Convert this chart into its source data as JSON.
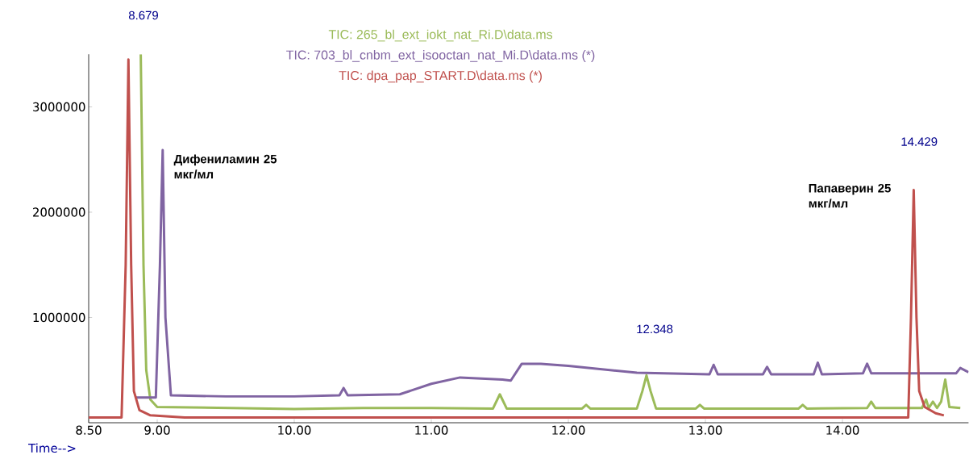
{
  "chart_data": {
    "type": "line",
    "xlabel": "Time-->",
    "xlim": [
      8.5,
      14.92
    ],
    "xticks": [
      {
        "value": 8.5,
        "label": "8.50"
      },
      {
        "value": 9,
        "label": "9.00"
      },
      {
        "value": 10,
        "label": "10.00"
      },
      {
        "value": 11,
        "label": "11.00"
      },
      {
        "value": 12,
        "label": "12.00"
      },
      {
        "value": 13,
        "label": "13.00"
      },
      {
        "value": 14,
        "label": "14.00"
      }
    ],
    "ylim": [
      0,
      3500000
    ],
    "yticks": [
      1000000,
      2000000,
      3000000
    ],
    "legend": "top",
    "grid": false,
    "line_style": "solid",
    "annotations": [
      "8.679",
      "Дифениламин 25 мкг/мл",
      "12.348",
      "Папаверин 25 мкг/мл",
      "14.429"
    ],
    "series": [
      {
        "name": "TIC: 265_bl_ext_iokt_nat_Ri.D\\data.ms",
        "color": "#9bbb59",
        "x": [
          8.88,
          8.9,
          8.92,
          8.95,
          9.0,
          9.5,
          10.0,
          10.5,
          11.0,
          11.45,
          11.5,
          11.55,
          12.1,
          12.13,
          12.16,
          12.5,
          12.54,
          12.57,
          12.6,
          12.64,
          12.93,
          12.96,
          12.99,
          13.68,
          13.71,
          13.74,
          14.18,
          14.21,
          14.24,
          14.58,
          14.61,
          14.63,
          14.66,
          14.69,
          14.72,
          14.75,
          14.78,
          14.86
        ],
        "values": [
          3500000,
          1500000,
          500000,
          220000,
          150000,
          140000,
          130000,
          140000,
          140000,
          135000,
          270000,
          135000,
          135000,
          170000,
          135000,
          135000,
          300000,
          450000,
          300000,
          135000,
          135000,
          170000,
          135000,
          135000,
          170000,
          135000,
          140000,
          200000,
          140000,
          140000,
          220000,
          140000,
          200000,
          140000,
          200000,
          410000,
          150000,
          140000
        ]
      },
      {
        "name": "TIC: 703_bl_cnbm_ext_isooctan_nat_Mi.D\\data.ms (*)",
        "color": "#8064a2",
        "x": [
          8.84,
          8.99,
          9.02,
          9.04,
          9.06,
          9.1,
          9.5,
          10.0,
          10.33,
          10.36,
          10.39,
          10.77,
          11.0,
          11.21,
          11.52,
          11.58,
          11.66,
          11.8,
          12.0,
          12.5,
          13.03,
          13.06,
          13.09,
          13.42,
          13.45,
          13.48,
          13.79,
          13.82,
          13.85,
          14.15,
          14.18,
          14.21,
          14.5,
          14.83,
          14.86,
          14.92
        ],
        "values": [
          240000,
          240000,
          1500000,
          2590000,
          1000000,
          260000,
          250000,
          250000,
          260000,
          330000,
          260000,
          270000,
          370000,
          430000,
          410000,
          400000,
          560000,
          560000,
          540000,
          475000,
          460000,
          550000,
          460000,
          460000,
          530000,
          460000,
          460000,
          570000,
          460000,
          470000,
          560000,
          470000,
          470000,
          470000,
          520000,
          480000
        ]
      },
      {
        "name": "TIC: dpa_pap_START.D\\data.ms (*)",
        "color": "#c0504d",
        "x": [
          8.5,
          8.74,
          8.77,
          8.79,
          8.81,
          8.83,
          8.87,
          8.95,
          9.2,
          14.48,
          14.5,
          14.52,
          14.54,
          14.56,
          14.6,
          14.68,
          14.74
        ],
        "values": [
          50000,
          50000,
          1500000,
          3450000,
          1500000,
          300000,
          120000,
          70000,
          50000,
          50000,
          1000000,
          2210000,
          1000000,
          300000,
          150000,
          90000,
          70000
        ]
      }
    ]
  }
}
